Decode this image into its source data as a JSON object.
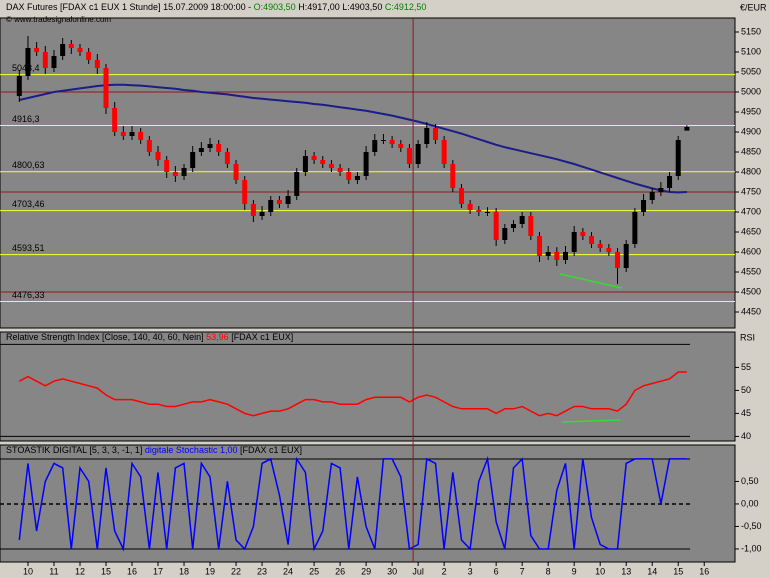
{
  "chart_data": [
    {
      "type": "candlestick",
      "title": "DAX Futures [FDAX c1 EUX  1 Stunde]  15.07.2009 18:00:00 -",
      "ohlc_labels": [
        "O:4903,50",
        "H:4917,00",
        "L:4903,50",
        "C:4912,50"
      ],
      "watermark": "© www.tradesignalonline.com",
      "y_label": "€/EUR",
      "ylim": [
        4410,
        5185
      ],
      "yticks": [
        4450,
        4500,
        4550,
        4600,
        4650,
        4700,
        4750,
        4800,
        4850,
        4900,
        4950,
        5000,
        5050,
        5100,
        5150
      ],
      "grid_major": [
        4500,
        4750,
        5000
      ],
      "levels": [
        {
          "value": 5043.4,
          "label": "5043,4"
        },
        {
          "value": 4916.3,
          "label": "4916,3"
        },
        {
          "value": 4800.63,
          "label": "4800,63"
        },
        {
          "value": 4703.46,
          "label": "4703,46"
        },
        {
          "value": 4593.51,
          "label": "4593,51"
        },
        {
          "value": 4476.33,
          "label": "4476,33"
        }
      ],
      "level_color": "#ffff33",
      "up_color": "#000000",
      "down_color": "#ff0000",
      "open": [
        4990,
        5040,
        5110,
        5100,
        5060,
        5090,
        5120,
        5110,
        5100,
        5080,
        5060,
        4960,
        4900,
        4890,
        4900,
        4880,
        4850,
        4830,
        4800,
        4790,
        4810,
        4850,
        4860,
        4870,
        4850,
        4820,
        4780,
        4720,
        4690,
        4700,
        4730,
        4720,
        4740,
        4800,
        4840,
        4830,
        4820,
        4810,
        4800,
        4780,
        4790,
        4850,
        4880,
        4880,
        4870,
        4860,
        4820,
        4870,
        4910,
        4880,
        4820,
        4760,
        4720,
        4705,
        4700,
        4700,
        4630,
        4660,
        4670,
        4690,
        4640,
        4590,
        4600,
        4580,
        4600,
        4650,
        4640,
        4620,
        4610,
        4600,
        4560,
        4620,
        4700,
        4730,
        4750,
        4760,
        4790,
        4903.5
      ],
      "high": [
        5055,
        5140,
        5125,
        5115,
        5105,
        5135,
        5130,
        5120,
        5110,
        5095,
        5070,
        4975,
        4915,
        4915,
        4910,
        4890,
        4865,
        4840,
        4815,
        4820,
        4865,
        4875,
        4885,
        4880,
        4860,
        4830,
        4790,
        4730,
        4715,
        4740,
        4740,
        4755,
        4810,
        4855,
        4850,
        4840,
        4830,
        4820,
        4810,
        4800,
        4865,
        4895,
        4895,
        4890,
        4880,
        4870,
        4880,
        4925,
        4920,
        4890,
        4830,
        4770,
        4730,
        4715,
        4712,
        4710,
        4670,
        4680,
        4700,
        4700,
        4650,
        4615,
        4612,
        4615,
        4665,
        4660,
        4650,
        4630,
        4620,
        4610,
        4630,
        4710,
        4745,
        4760,
        4775,
        4800,
        4890,
        4917
      ],
      "low": [
        4975,
        5030,
        5090,
        5045,
        5050,
        5080,
        5095,
        5090,
        5070,
        5045,
        4945,
        4890,
        4880,
        4880,
        4870,
        4840,
        4815,
        4785,
        4775,
        4780,
        4800,
        4840,
        4850,
        4840,
        4810,
        4770,
        4705,
        4675,
        4680,
        4690,
        4710,
        4710,
        4730,
        4790,
        4820,
        4810,
        4800,
        4790,
        4770,
        4770,
        4780,
        4840,
        4870,
        4860,
        4850,
        4810,
        4810,
        4860,
        4870,
        4810,
        4750,
        4710,
        4695,
        4690,
        4690,
        4615,
        4620,
        4650,
        4660,
        4630,
        4575,
        4580,
        4565,
        4570,
        4590,
        4630,
        4610,
        4600,
        4590,
        4520,
        4550,
        4610,
        4690,
        4720,
        4740,
        4750,
        4780,
        4903.5
      ],
      "close": [
        5040,
        5110,
        5100,
        5060,
        5090,
        5120,
        5110,
        5100,
        5080,
        5060,
        4960,
        4900,
        4890,
        4900,
        4880,
        4850,
        4830,
        4800,
        4790,
        4810,
        4850,
        4860,
        4870,
        4850,
        4820,
        4780,
        4720,
        4690,
        4700,
        4730,
        4720,
        4740,
        4800,
        4840,
        4830,
        4820,
        4810,
        4800,
        4780,
        4790,
        4850,
        4880,
        4880,
        4870,
        4860,
        4820,
        4870,
        4910,
        4880,
        4820,
        4760,
        4720,
        4705,
        4700,
        4700,
        4630,
        4660,
        4670,
        4690,
        4640,
        4590,
        4600,
        4580,
        4600,
        4650,
        4640,
        4620,
        4610,
        4600,
        4560,
        4620,
        4700,
        4730,
        4750,
        4760,
        4790,
        4880,
        4912.5
      ],
      "overlays": [
        {
          "color": "#1c1c8a",
          "values": [
            4980,
            4985,
            4990,
            4995,
            5000,
            5003,
            5006,
            5009,
            5012,
            5015,
            5017,
            5018,
            5018,
            5017,
            5016,
            5014,
            5012,
            5010,
            5008,
            5005,
            5003,
            5000,
            4998,
            4996,
            4994,
            4991,
            4988,
            4985,
            4983,
            4981,
            4979,
            4977,
            4975,
            4973,
            4970,
            4968,
            4965,
            4962,
            4959,
            4956,
            4953,
            4949,
            4945,
            4941,
            4936,
            4931,
            4926,
            4920,
            4914,
            4908,
            4902,
            4896,
            4889,
            4882,
            4875,
            4868,
            4862,
            4857,
            4852,
            4847,
            4842,
            4837,
            4832,
            4826,
            4820,
            4813,
            4806,
            4799,
            4792,
            4785,
            4778,
            4771,
            4765,
            4759,
            4754,
            4750,
            4749,
            4750
          ]
        }
      ]
    },
    {
      "type": "line",
      "title": "Relative Strength Index [Close, 140, 40, 60, Nein]",
      "value_label": "53,96",
      "title_suffix": "[FDAX c1 EUX]",
      "y_label": "RSI",
      "color": "#ff0000",
      "ylim": [
        39,
        62.7
      ],
      "yticks": [
        40,
        45,
        50,
        55
      ],
      "bands": [
        40,
        60
      ],
      "values": [
        52,
        53,
        52,
        51,
        52,
        52.5,
        52,
        51.5,
        51,
        50.5,
        49,
        48,
        48,
        48,
        47.5,
        47,
        47,
        46.5,
        46.5,
        47,
        47.5,
        47.5,
        48,
        47.5,
        47,
        46,
        45,
        44.5,
        45,
        45.5,
        45.5,
        46,
        47,
        48,
        48,
        47.5,
        47.5,
        47,
        47,
        47,
        48,
        48.5,
        48.5,
        48.5,
        48.5,
        47.5,
        48.5,
        49,
        48.5,
        47.5,
        46.5,
        46,
        46,
        46,
        46,
        45,
        46,
        46,
        46.5,
        45.5,
        44.5,
        45,
        44.5,
        45.5,
        46.5,
        46.5,
        46,
        46,
        46,
        45.5,
        47,
        50,
        51,
        51.5,
        52,
        52.5,
        54,
        54
      ]
    },
    {
      "type": "line",
      "title": "STOASTIK DIGITAL [5, 3, 3, -1, 1]",
      "value_label": "digitale Stochastic 1,00",
      "title_suffix": "[FDAX c1 EUX]",
      "color": "#0000ff",
      "ylim": [
        -1.29,
        1.31
      ],
      "yticks": [
        {
          "value": 0.5,
          "label": "0,50"
        },
        {
          "value": 0,
          "label": "0,00"
        },
        {
          "value": -0.5,
          "label": "-0,50"
        },
        {
          "value": -1,
          "label": "-1,00"
        }
      ],
      "bands": [
        -1,
        1
      ],
      "dashed_lines": [
        0
      ],
      "values": [
        -0.8,
        0.9,
        -0.6,
        0.5,
        0.9,
        0.8,
        -1,
        0.8,
        0.5,
        -1,
        0.8,
        -0.6,
        -1,
        0.9,
        0.6,
        -1,
        0.7,
        -1,
        0.8,
        0.9,
        -1,
        0.9,
        0.6,
        -1,
        0.5,
        -0.8,
        -1,
        -0.5,
        0.9,
        1,
        0.2,
        -0.9,
        1,
        0.7,
        -1,
        -0.6,
        0.9,
        0.8,
        -1,
        0.6,
        -0.5,
        -1,
        1,
        1,
        0.6,
        -1,
        -0.9,
        1,
        0.9,
        -1,
        0.7,
        -0.8,
        -1,
        0.5,
        1,
        -0.4,
        -1,
        0.8,
        1,
        -0.7,
        -1,
        -1,
        0.3,
        0.9,
        -1,
        1,
        -0.3,
        -0.9,
        -1,
        -1,
        0.9,
        1,
        1,
        1,
        0,
        1,
        1,
        1
      ],
      "x_labels": [
        "10",
        "11",
        "12",
        "15",
        "16",
        "17",
        "18",
        "19",
        "22",
        "23",
        "24",
        "25",
        "26",
        "29",
        "30",
        "Jul",
        "2",
        "3",
        "6",
        "7",
        "8",
        "9",
        "10",
        "13",
        "14",
        "15",
        "16"
      ],
      "month_starts": [
        15
      ]
    }
  ]
}
